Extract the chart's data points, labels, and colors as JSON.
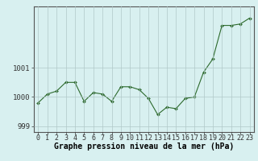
{
  "x": [
    0,
    1,
    2,
    3,
    4,
    5,
    6,
    7,
    8,
    9,
    10,
    11,
    12,
    13,
    14,
    15,
    16,
    17,
    18,
    19,
    20,
    21,
    22,
    23
  ],
  "y": [
    999.8,
    1000.1,
    1000.2,
    1000.5,
    1000.5,
    999.85,
    1000.15,
    1000.1,
    999.85,
    1000.35,
    1000.35,
    1000.25,
    999.95,
    999.4,
    999.65,
    999.6,
    999.95,
    1000.0,
    1000.85,
    1001.3,
    1002.45,
    1002.45,
    1002.5,
    1002.7
  ],
  "line_color": "#2d6a2d",
  "marker_color": "#2d6a2d",
  "bg_color": "#d8f0f0",
  "grid_color": "#b0c8c8",
  "xlabel": "Graphe pression niveau de la mer (hPa)",
  "ylim": [
    998.8,
    1003.1
  ],
  "yticks": [
    999,
    1000,
    1001
  ],
  "xticks": [
    0,
    1,
    2,
    3,
    4,
    5,
    6,
    7,
    8,
    9,
    10,
    11,
    12,
    13,
    14,
    15,
    16,
    17,
    18,
    19,
    20,
    21,
    22,
    23
  ],
  "xlabel_fontsize": 7.0,
  "tick_fontsize": 6.0
}
